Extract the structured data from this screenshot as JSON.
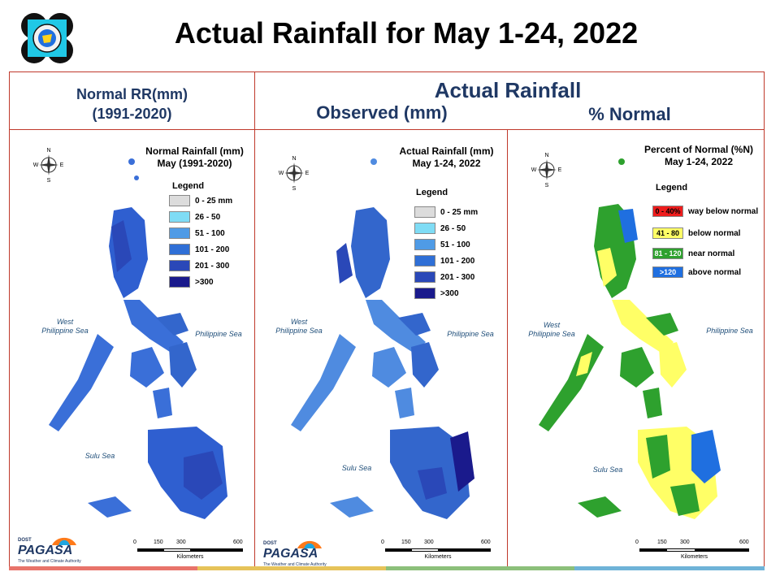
{
  "title": "Actual Rainfall for May 1-24, 2022",
  "headers": {
    "normal_line1": "Normal RR(mm)",
    "normal_line2": "(1991-2020)",
    "actual": "Actual Rainfall",
    "observed": "Observed (mm)",
    "percent": "% Normal"
  },
  "panels": [
    {
      "title1": "Normal Rainfall (mm)",
      "title2": "May (1991-2020)"
    },
    {
      "title1": "Actual Rainfall (mm)",
      "title2": "May 1-24, 2022"
    },
    {
      "title1": "Percent of Normal (%N)",
      "title2": "May 1-24, 2022"
    }
  ],
  "legend_title": "Legend",
  "rain_legend": [
    {
      "label": "0 - 25 mm",
      "color": "#dcdcdc"
    },
    {
      "label": "26 - 50",
      "color": "#7fdcf5"
    },
    {
      "label": "51 - 100",
      "color": "#4f9be6"
    },
    {
      "label": "101 - 200",
      "color": "#2f6fd6"
    },
    {
      "label": "201 - 300",
      "color": "#2a48b8"
    },
    {
      "label": ">300",
      "color": "#1a1a8c"
    }
  ],
  "pct_legend": [
    {
      "swatch": "0 - 40%",
      "label": "way below normal",
      "color": "#ee1c1c"
    },
    {
      "swatch": "41 - 80",
      "label": "below normal",
      "color": "#ffff66"
    },
    {
      "swatch": "81 - 120",
      "label": "near normal",
      "color": "#2ea12e"
    },
    {
      "swatch": ">120",
      "label": "above normal",
      "color": "#1f6fe0"
    }
  ],
  "seas": {
    "west1": "West",
    "west2": "Philippine Sea",
    "east": "Philippine Sea",
    "sulu": "Sulu Sea"
  },
  "compass": {
    "n": "N",
    "s": "S",
    "e": "E",
    "w": "W"
  },
  "scale": {
    "ticks": [
      "0",
      "150",
      "300",
      "600"
    ],
    "unit": "Kilometers"
  },
  "brand": {
    "name": "PAGASA",
    "tagline": "DOST",
    "sub": "The Weather and Climate Authority"
  }
}
